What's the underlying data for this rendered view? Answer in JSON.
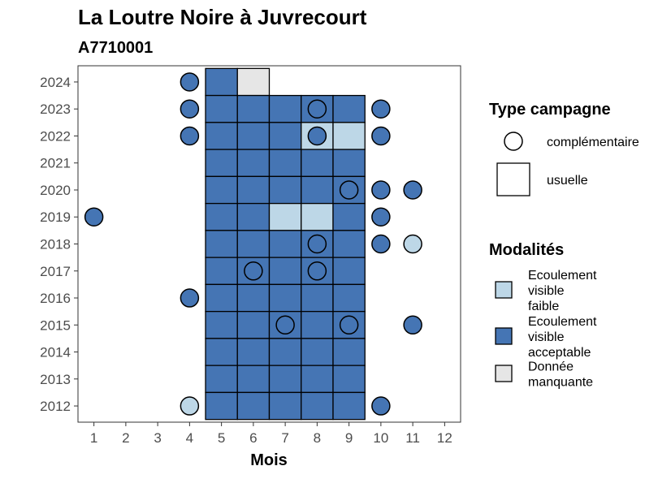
{
  "chart_data": {
    "type": "heatmap",
    "title": "La Loutre Noire à Juvrecourt",
    "subtitle": "A7710001",
    "xlabel": "Mois",
    "ylabel": "",
    "x_ticks": [
      1,
      2,
      3,
      4,
      5,
      6,
      7,
      8,
      9,
      10,
      11,
      12
    ],
    "y_ticks": [
      2012,
      2013,
      2014,
      2015,
      2016,
      2017,
      2018,
      2019,
      2020,
      2021,
      2022,
      2023,
      2024
    ],
    "xlim": [
      0.5,
      12.5
    ],
    "ylim": [
      2011.4,
      2024.6
    ],
    "grid": false,
    "colors": {
      "faible": "#bdd7e7",
      "acceptable": "#4575b4",
      "manquante": "#e6e6e6"
    },
    "usuelle": [
      {
        "year": 2024,
        "month": 5,
        "m": "acceptable"
      },
      {
        "year": 2024,
        "month": 6,
        "m": "manquante"
      },
      {
        "year": 2023,
        "month": 5,
        "m": "acceptable"
      },
      {
        "year": 2023,
        "month": 6,
        "m": "acceptable"
      },
      {
        "year": 2023,
        "month": 7,
        "m": "acceptable"
      },
      {
        "year": 2023,
        "month": 8,
        "m": "acceptable"
      },
      {
        "year": 2023,
        "month": 9,
        "m": "acceptable"
      },
      {
        "year": 2022,
        "month": 5,
        "m": "acceptable"
      },
      {
        "year": 2022,
        "month": 6,
        "m": "acceptable"
      },
      {
        "year": 2022,
        "month": 7,
        "m": "acceptable"
      },
      {
        "year": 2022,
        "month": 8,
        "m": "faible"
      },
      {
        "year": 2022,
        "month": 9,
        "m": "faible"
      },
      {
        "year": 2021,
        "month": 5,
        "m": "acceptable"
      },
      {
        "year": 2021,
        "month": 6,
        "m": "acceptable"
      },
      {
        "year": 2021,
        "month": 7,
        "m": "acceptable"
      },
      {
        "year": 2021,
        "month": 8,
        "m": "acceptable"
      },
      {
        "year": 2021,
        "month": 9,
        "m": "acceptable"
      },
      {
        "year": 2020,
        "month": 5,
        "m": "acceptable"
      },
      {
        "year": 2020,
        "month": 6,
        "m": "acceptable"
      },
      {
        "year": 2020,
        "month": 7,
        "m": "acceptable"
      },
      {
        "year": 2020,
        "month": 8,
        "m": "acceptable"
      },
      {
        "year": 2020,
        "month": 9,
        "m": "acceptable"
      },
      {
        "year": 2019,
        "month": 5,
        "m": "acceptable"
      },
      {
        "year": 2019,
        "month": 6,
        "m": "acceptable"
      },
      {
        "year": 2019,
        "month": 7,
        "m": "faible"
      },
      {
        "year": 2019,
        "month": 8,
        "m": "faible"
      },
      {
        "year": 2019,
        "month": 9,
        "m": "acceptable"
      },
      {
        "year": 2018,
        "month": 5,
        "m": "acceptable"
      },
      {
        "year": 2018,
        "month": 6,
        "m": "acceptable"
      },
      {
        "year": 2018,
        "month": 7,
        "m": "acceptable"
      },
      {
        "year": 2018,
        "month": 8,
        "m": "acceptable"
      },
      {
        "year": 2018,
        "month": 9,
        "m": "acceptable"
      },
      {
        "year": 2017,
        "month": 5,
        "m": "acceptable"
      },
      {
        "year": 2017,
        "month": 6,
        "m": "acceptable"
      },
      {
        "year": 2017,
        "month": 7,
        "m": "acceptable"
      },
      {
        "year": 2017,
        "month": 8,
        "m": "acceptable"
      },
      {
        "year": 2017,
        "month": 9,
        "m": "acceptable"
      },
      {
        "year": 2016,
        "month": 5,
        "m": "acceptable"
      },
      {
        "year": 2016,
        "month": 6,
        "m": "acceptable"
      },
      {
        "year": 2016,
        "month": 7,
        "m": "acceptable"
      },
      {
        "year": 2016,
        "month": 8,
        "m": "acceptable"
      },
      {
        "year": 2016,
        "month": 9,
        "m": "acceptable"
      },
      {
        "year": 2015,
        "month": 5,
        "m": "acceptable"
      },
      {
        "year": 2015,
        "month": 6,
        "m": "acceptable"
      },
      {
        "year": 2015,
        "month": 7,
        "m": "acceptable"
      },
      {
        "year": 2015,
        "month": 8,
        "m": "acceptable"
      },
      {
        "year": 2015,
        "month": 9,
        "m": "acceptable"
      },
      {
        "year": 2014,
        "month": 5,
        "m": "acceptable"
      },
      {
        "year": 2014,
        "month": 6,
        "m": "acceptable"
      },
      {
        "year": 2014,
        "month": 7,
        "m": "acceptable"
      },
      {
        "year": 2014,
        "month": 8,
        "m": "acceptable"
      },
      {
        "year": 2014,
        "month": 9,
        "m": "acceptable"
      },
      {
        "year": 2013,
        "month": 5,
        "m": "acceptable"
      },
      {
        "year": 2013,
        "month": 6,
        "m": "acceptable"
      },
      {
        "year": 2013,
        "month": 7,
        "m": "acceptable"
      },
      {
        "year": 2013,
        "month": 8,
        "m": "acceptable"
      },
      {
        "year": 2013,
        "month": 9,
        "m": "acceptable"
      },
      {
        "year": 2012,
        "month": 5,
        "m": "acceptable"
      },
      {
        "year": 2012,
        "month": 6,
        "m": "acceptable"
      },
      {
        "year": 2012,
        "month": 7,
        "m": "acceptable"
      },
      {
        "year": 2012,
        "month": 8,
        "m": "acceptable"
      },
      {
        "year": 2012,
        "month": 9,
        "m": "acceptable"
      }
    ],
    "complementaire": [
      {
        "year": 2024,
        "month": 4,
        "m": "acceptable"
      },
      {
        "year": 2023,
        "month": 4,
        "m": "acceptable"
      },
      {
        "year": 2023,
        "month": 8,
        "m": "acceptable"
      },
      {
        "year": 2023,
        "month": 10,
        "m": "acceptable"
      },
      {
        "year": 2022,
        "month": 4,
        "m": "acceptable"
      },
      {
        "year": 2022,
        "month": 8,
        "m": "acceptable"
      },
      {
        "year": 2022,
        "month": 10,
        "m": "acceptable"
      },
      {
        "year": 2020,
        "month": 9,
        "m": "acceptable"
      },
      {
        "year": 2020,
        "month": 10,
        "m": "acceptable"
      },
      {
        "year": 2020,
        "month": 11,
        "m": "acceptable"
      },
      {
        "year": 2019,
        "month": 1,
        "m": "acceptable"
      },
      {
        "year": 2019,
        "month": 10,
        "m": "acceptable"
      },
      {
        "year": 2018,
        "month": 8,
        "m": "acceptable"
      },
      {
        "year": 2018,
        "month": 10,
        "m": "acceptable"
      },
      {
        "year": 2018,
        "month": 11,
        "m": "faible"
      },
      {
        "year": 2017,
        "month": 6,
        "m": "acceptable"
      },
      {
        "year": 2017,
        "month": 8,
        "m": "acceptable"
      },
      {
        "year": 2016,
        "month": 4,
        "m": "acceptable"
      },
      {
        "year": 2015,
        "month": 7,
        "m": "acceptable"
      },
      {
        "year": 2015,
        "month": 9,
        "m": "acceptable"
      },
      {
        "year": 2015,
        "month": 11,
        "m": "acceptable"
      },
      {
        "year": 2012,
        "month": 4,
        "m": "faible"
      },
      {
        "year": 2012,
        "month": 10,
        "m": "acceptable"
      }
    ],
    "legend": {
      "placement": "right",
      "type_title": "Type campagne",
      "type_entries": [
        {
          "shape": "circle",
          "label": "complémentaire"
        },
        {
          "shape": "square",
          "label": "usuelle"
        }
      ],
      "mod_title": "Modalités",
      "mod_entries": [
        {
          "key": "faible",
          "lines": [
            "Ecoulement",
            "visible",
            "faible"
          ]
        },
        {
          "key": "acceptable",
          "lines": [
            "Ecoulement",
            "visible",
            "acceptable"
          ]
        },
        {
          "key": "manquante",
          "lines": [
            "Donnée",
            "manquante"
          ]
        }
      ]
    }
  }
}
